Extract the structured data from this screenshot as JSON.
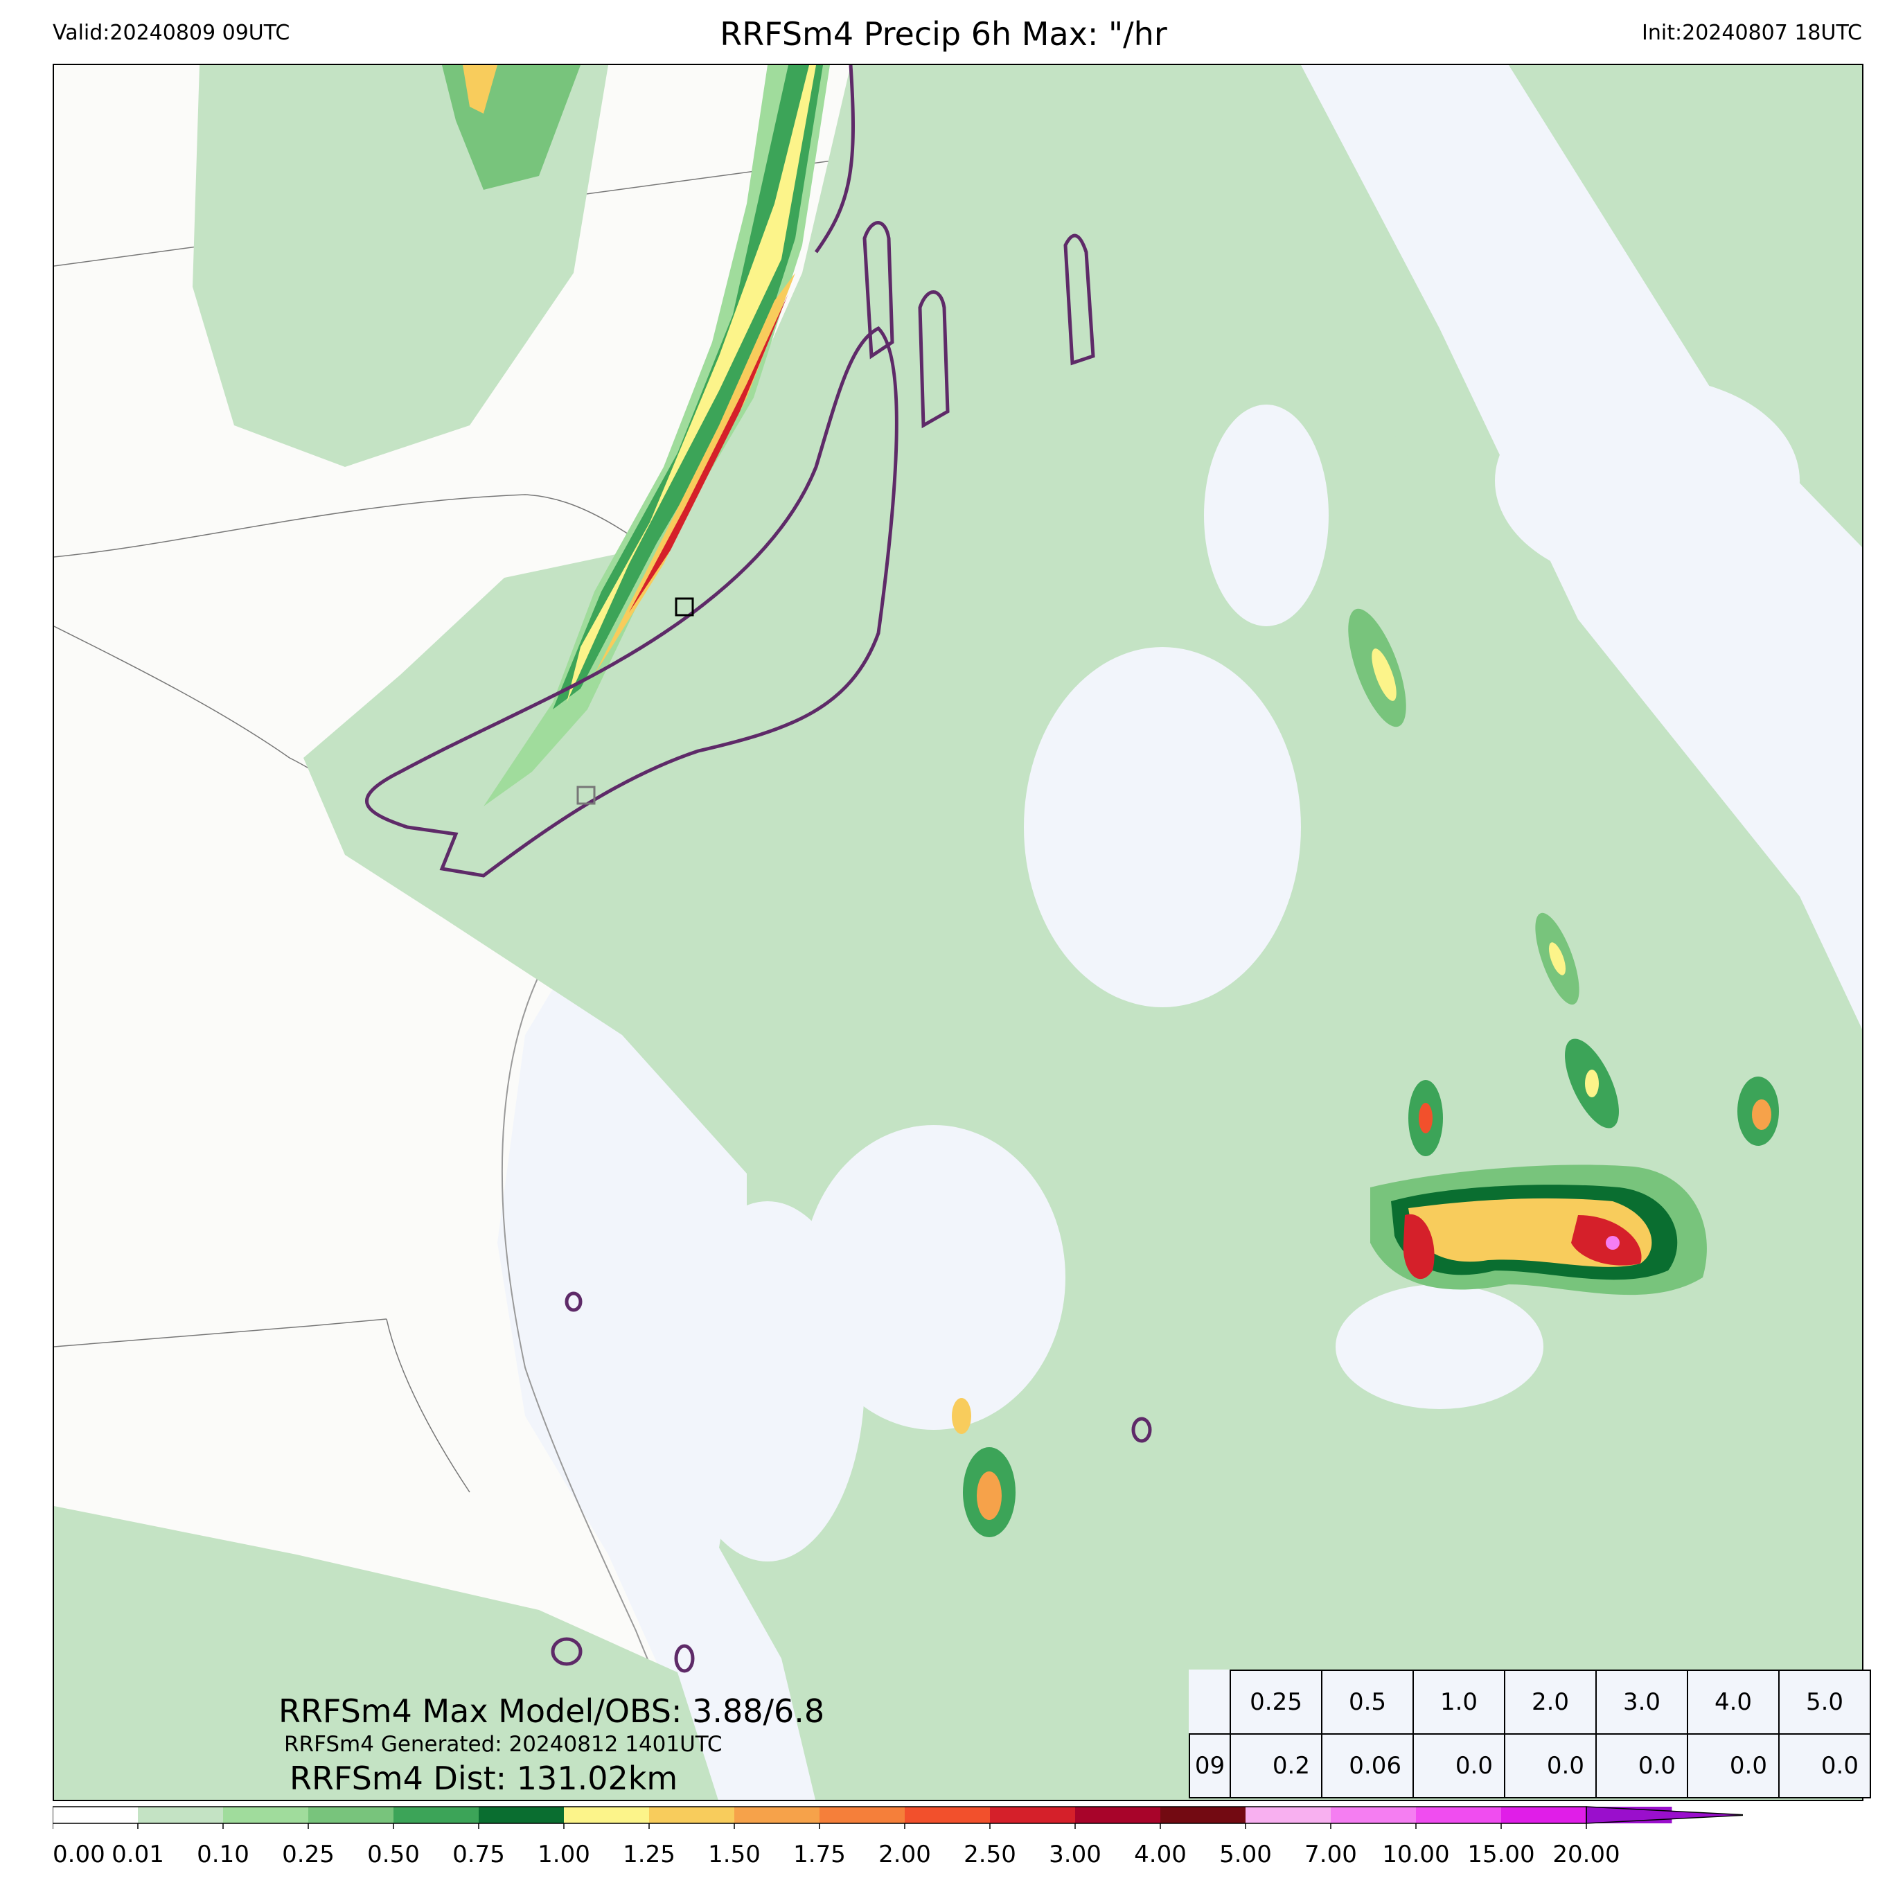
{
  "header": {
    "valid": "Valid:20240809 09UTC",
    "title": "RRFSm4 Precip 6h Max: \"/hr",
    "init": "Init:20240807 18UTC"
  },
  "stats": {
    "max_model_obs": "RRFSm4 Max Model/OBS: 3.88/6.8",
    "generated": "RRFSm4 Generated: 20240812 1401UTC",
    "distance": "RRFSm4 Dist: 131.02km"
  },
  "threshold_table": {
    "headers": [
      "0.25",
      "0.5",
      "1.0",
      "2.0",
      "3.0",
      "4.0",
      "5.0"
    ],
    "row_label": "09",
    "values": [
      "0.2",
      "0.06",
      "0.0",
      "0.0",
      "0.0",
      "0.0",
      "0.0"
    ]
  },
  "chart_data": {
    "type": "heatmap",
    "title": "RRFSm4 Precip 6h Max: \"/hr",
    "colorbar": {
      "ticks": [
        "0.00",
        "0.01",
        "0.10",
        "0.25",
        "0.50",
        "0.75",
        "1.00",
        "1.25",
        "1.50",
        "1.75",
        "2.00",
        "2.50",
        "3.00",
        "4.00",
        "5.00",
        "7.00",
        "10.00",
        "15.00",
        "20.00"
      ],
      "colors": [
        "#ffffff",
        "#c4e3c4",
        "#a0dc9c",
        "#78c47c",
        "#3ca458",
        "#0a6e30",
        "#fcf48a",
        "#f8cc5c",
        "#f6a24a",
        "#f57f3a",
        "#f2502c",
        "#d5202a",
        "#a8042a",
        "#730a12",
        "#f8b0f0",
        "#f57ef2",
        "#f04df0",
        "#e01ee8",
        "#9a0fcc"
      ],
      "extend": "max"
    }
  }
}
